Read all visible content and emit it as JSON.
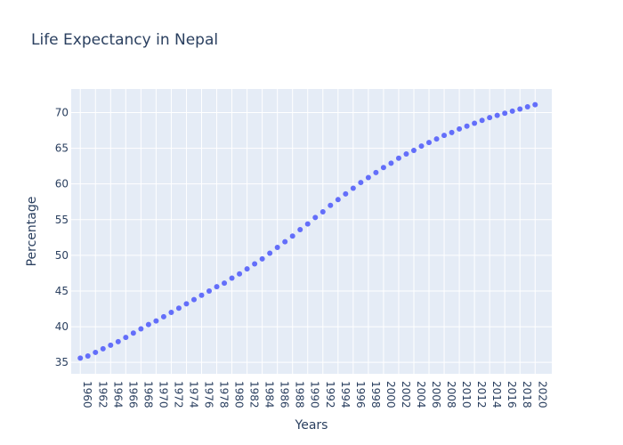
{
  "chart_data": {
    "type": "scatter",
    "title": "Life Expectancy in Nepal",
    "xlabel": "Years",
    "ylabel": "Percentage",
    "xlim": [
      1958.8,
      2022.2
    ],
    "ylim": [
      33.4,
      73.3
    ],
    "yticks": [
      35,
      40,
      45,
      50,
      55,
      60,
      65,
      70
    ],
    "xticks": [
      1960,
      1962,
      1964,
      1966,
      1968,
      1970,
      1972,
      1974,
      1976,
      1978,
      1980,
      1982,
      1984,
      1986,
      1988,
      1990,
      1992,
      1994,
      1996,
      1998,
      2000,
      2002,
      2004,
      2006,
      2008,
      2010,
      2012,
      2014,
      2016,
      2018,
      2020
    ],
    "grid": true,
    "legend": "none",
    "colors": {
      "marker": "#636efa",
      "plot_bg": "#e5ecf6",
      "grid": "#ffffff",
      "text": "#2a3f5f"
    },
    "x": [
      1960,
      1961,
      1962,
      1963,
      1964,
      1965,
      1966,
      1967,
      1968,
      1969,
      1970,
      1971,
      1972,
      1973,
      1974,
      1975,
      1976,
      1977,
      1978,
      1979,
      1980,
      1981,
      1982,
      1983,
      1984,
      1985,
      1986,
      1987,
      1988,
      1989,
      1990,
      1991,
      1992,
      1993,
      1994,
      1995,
      1996,
      1997,
      1998,
      1999,
      2000,
      2001,
      2002,
      2003,
      2004,
      2005,
      2006,
      2007,
      2008,
      2009,
      2010,
      2011,
      2012,
      2013,
      2014,
      2015,
      2016,
      2017,
      2018,
      2019,
      2020
    ],
    "y": [
      35.6,
      35.9,
      36.4,
      36.9,
      37.4,
      37.9,
      38.5,
      39.1,
      39.7,
      40.3,
      40.8,
      41.4,
      42.0,
      42.6,
      43.2,
      43.8,
      44.4,
      45.0,
      45.6,
      46.1,
      46.8,
      47.4,
      48.1,
      48.8,
      49.5,
      50.3,
      51.1,
      51.9,
      52.7,
      53.6,
      54.4,
      55.3,
      56.1,
      57.0,
      57.8,
      58.6,
      59.4,
      60.2,
      60.9,
      61.6,
      62.3,
      62.9,
      63.6,
      64.2,
      64.7,
      65.3,
      65.8,
      66.3,
      66.8,
      67.2,
      67.7,
      68.1,
      68.5,
      68.9,
      69.3,
      69.6,
      69.9,
      70.2,
      70.5,
      70.8,
      71.1
    ]
  }
}
